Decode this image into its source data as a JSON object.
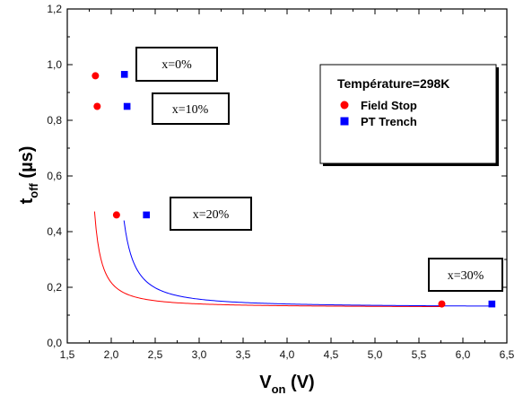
{
  "chart_data": {
    "type": "scatter",
    "xlabel": {
      "main": "V",
      "sub": "on",
      "unit": " (V)"
    },
    "ylabel": {
      "main": "t",
      "sub": "off",
      "unit": " (µs)"
    },
    "xlim": [
      1.5,
      6.5
    ],
    "ylim": [
      0.0,
      1.2
    ],
    "xticks": [
      "1,5",
      "2,0",
      "2,5",
      "3,0",
      "3,5",
      "4,0",
      "4,5",
      "5,0",
      "5,5",
      "6,0",
      "6,5"
    ],
    "yticks": [
      "0,0",
      "0,2",
      "0,4",
      "0,6",
      "0,8",
      "1,0",
      "1,2"
    ],
    "grid": false,
    "legend": {
      "position": "top-right",
      "title": "Température=298K",
      "entries": [
        "Field Stop",
        "PT Trench"
      ]
    },
    "series": [
      {
        "name": "Field Stop",
        "color": "#ff0000",
        "marker": "circle",
        "points": [
          [
            1.82,
            0.96
          ],
          [
            1.84,
            0.85
          ],
          [
            2.06,
            0.46
          ],
          [
            5.76,
            0.14
          ]
        ]
      },
      {
        "name": "PT Trench",
        "color": "#0000ff",
        "marker": "square",
        "points": [
          [
            2.15,
            0.965
          ],
          [
            2.18,
            0.85
          ],
          [
            2.4,
            0.46
          ],
          [
            6.33,
            0.14
          ]
        ]
      }
    ],
    "annotations": [
      {
        "text": "x=0%"
      },
      {
        "text": "x=10%"
      },
      {
        "text": "x=20%"
      },
      {
        "text": "x=30%"
      }
    ]
  }
}
